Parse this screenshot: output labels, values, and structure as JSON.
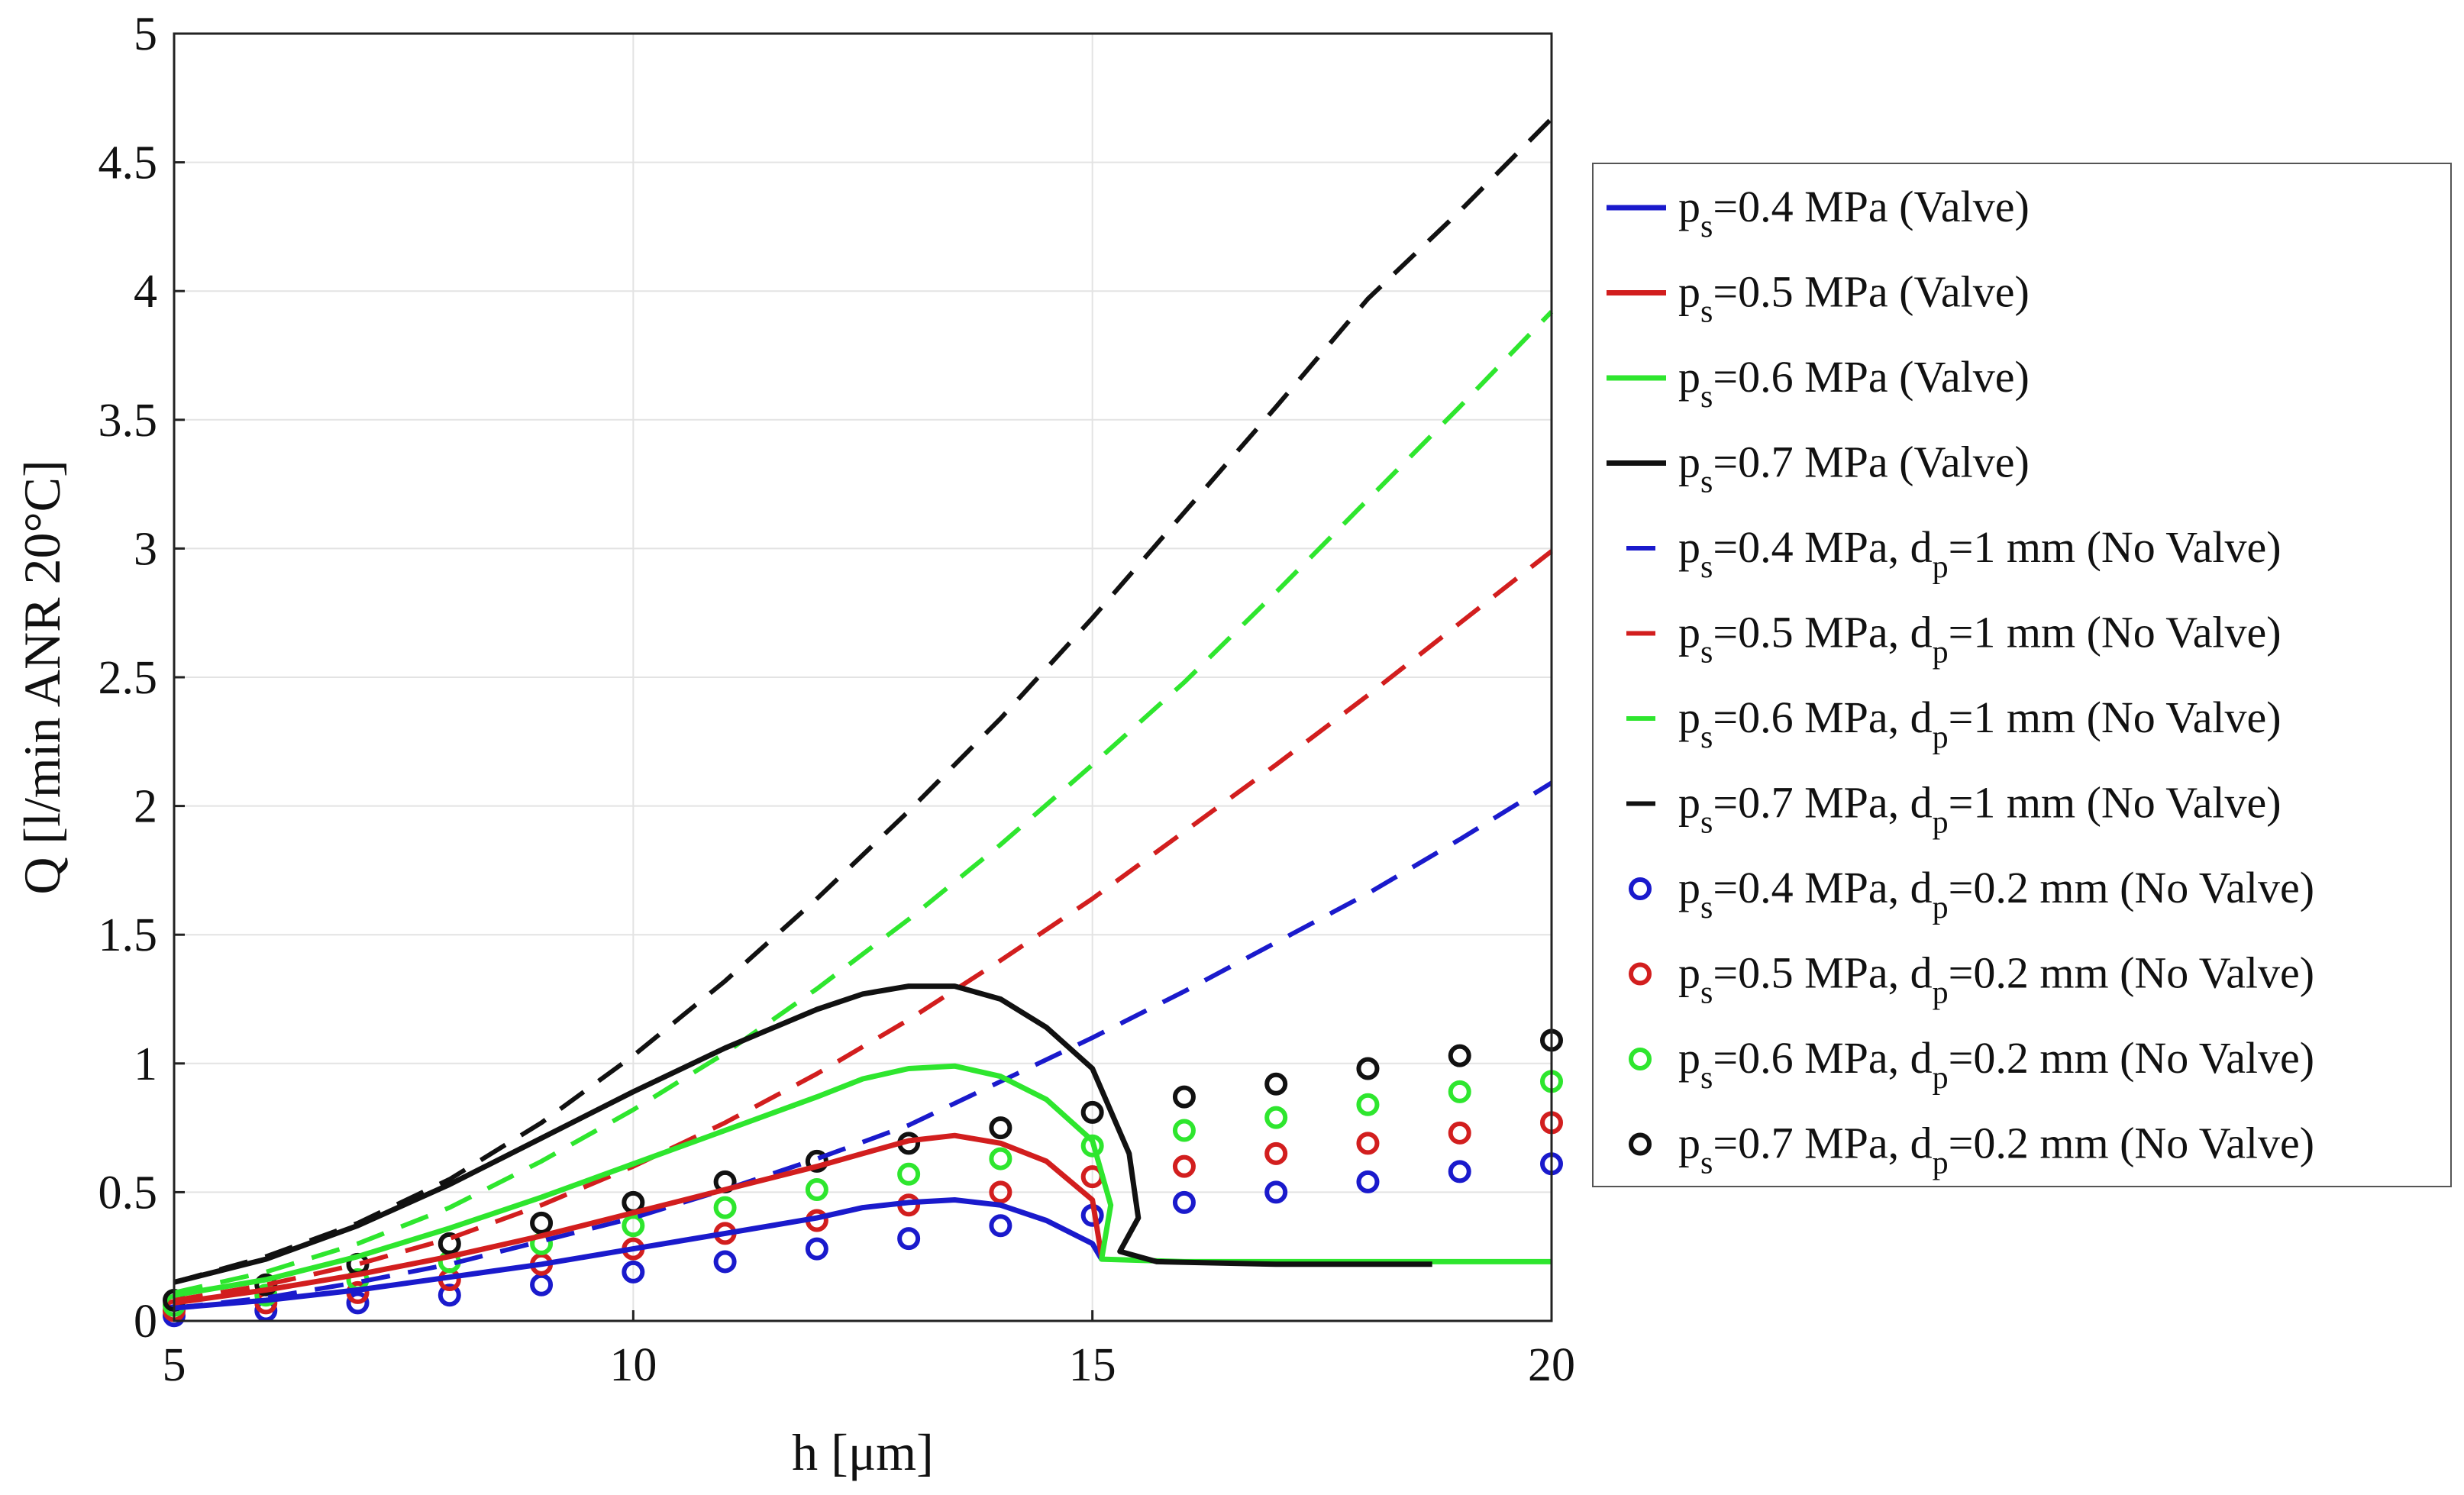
{
  "chart_data": {
    "type": "line",
    "title": "",
    "xlabel": "h [μm]",
    "ylabel": "Q [l/min ANR 20°C]",
    "xlim": [
      5,
      20
    ],
    "ylim": [
      0,
      5
    ],
    "grid": true,
    "legend_position": "right",
    "x_ticks": [
      "5",
      "10",
      "15",
      "20"
    ],
    "y_ticks": [
      "0",
      "0.5",
      "1",
      "1.5",
      "2",
      "2.5",
      "3",
      "3.5",
      "4",
      "4.5",
      "5"
    ],
    "colors": {
      "blue": "#1a1acc",
      "red": "#d21e1e",
      "green": "#2ee62e",
      "black": "#111111"
    },
    "series": [
      {
        "name": "ps=0.4 MPa (Valve)",
        "legend_parts": [
          [
            "p",
            ""
          ],
          [
            "s",
            "sub"
          ],
          [
            "=0.4 MPa (Valve)",
            ""
          ]
        ],
        "style": "solid",
        "color": "blue",
        "points": [
          [
            5,
            0.05
          ],
          [
            6,
            0.08
          ],
          [
            7,
            0.12
          ],
          [
            8,
            0.17
          ],
          [
            9,
            0.22
          ],
          [
            10,
            0.28
          ],
          [
            11,
            0.34
          ],
          [
            12,
            0.4
          ],
          [
            12.5,
            0.44
          ],
          [
            13,
            0.46
          ],
          [
            13.5,
            0.47
          ],
          [
            14,
            0.45
          ],
          [
            14.5,
            0.39
          ],
          [
            15,
            0.3
          ],
          [
            15.1,
            0.24
          ]
        ]
      },
      {
        "name": "ps=0.5 MPa (Valve)",
        "legend_parts": [
          [
            "p",
            ""
          ],
          [
            "s",
            "sub"
          ],
          [
            "=0.5 MPa (Valve)",
            ""
          ]
        ],
        "style": "solid",
        "color": "red",
        "points": [
          [
            5,
            0.07
          ],
          [
            6,
            0.12
          ],
          [
            7,
            0.18
          ],
          [
            8,
            0.25
          ],
          [
            9,
            0.33
          ],
          [
            10,
            0.42
          ],
          [
            11,
            0.51
          ],
          [
            12,
            0.6
          ],
          [
            12.5,
            0.65
          ],
          [
            13,
            0.7
          ],
          [
            13.5,
            0.72
          ],
          [
            14,
            0.69
          ],
          [
            14.5,
            0.62
          ],
          [
            15,
            0.47
          ],
          [
            15.1,
            0.25
          ]
        ]
      },
      {
        "name": "ps=0.6 MPa (Valve)",
        "legend_parts": [
          [
            "p",
            ""
          ],
          [
            "s",
            "sub"
          ],
          [
            "=0.6 MPa (Valve)",
            ""
          ]
        ],
        "style": "solid",
        "color": "green",
        "points": [
          [
            5,
            0.1
          ],
          [
            6,
            0.16
          ],
          [
            7,
            0.25
          ],
          [
            8,
            0.36
          ],
          [
            9,
            0.48
          ],
          [
            10,
            0.61
          ],
          [
            11,
            0.74
          ],
          [
            12,
            0.87
          ],
          [
            12.5,
            0.94
          ],
          [
            13,
            0.98
          ],
          [
            13.5,
            0.99
          ],
          [
            14,
            0.95
          ],
          [
            14.5,
            0.86
          ],
          [
            15,
            0.7
          ],
          [
            15.2,
            0.45
          ],
          [
            15.1,
            0.24
          ],
          [
            16,
            0.23
          ],
          [
            18,
            0.23
          ],
          [
            20,
            0.23
          ]
        ]
      },
      {
        "name": "ps=0.7 MPa (Valve)",
        "legend_parts": [
          [
            "p",
            ""
          ],
          [
            "s",
            "sub"
          ],
          [
            "=0.7 MPa (Valve)",
            ""
          ]
        ],
        "style": "solid",
        "color": "black",
        "points": [
          [
            5,
            0.15
          ],
          [
            6,
            0.24
          ],
          [
            7,
            0.37
          ],
          [
            8,
            0.53
          ],
          [
            9,
            0.71
          ],
          [
            10,
            0.89
          ],
          [
            11,
            1.06
          ],
          [
            12,
            1.21
          ],
          [
            12.5,
            1.27
          ],
          [
            13,
            1.3
          ],
          [
            13.5,
            1.3
          ],
          [
            14,
            1.25
          ],
          [
            14.5,
            1.14
          ],
          [
            15,
            0.98
          ],
          [
            15.4,
            0.65
          ],
          [
            15.5,
            0.4
          ],
          [
            15.3,
            0.27
          ],
          [
            15.7,
            0.23
          ],
          [
            17,
            0.22
          ],
          [
            18.7,
            0.22
          ]
        ]
      },
      {
        "name": "ps=0.4 MPa, dp=1 mm (No Valve)",
        "legend_parts": [
          [
            "p",
            ""
          ],
          [
            "s",
            "sub"
          ],
          [
            "=0.4 MPa, d",
            ""
          ],
          [
            "p",
            "sub"
          ],
          [
            "=1 mm (No Valve)",
            ""
          ]
        ],
        "style": "dashed",
        "color": "blue",
        "points": [
          [
            5,
            0.05
          ],
          [
            6,
            0.09
          ],
          [
            7,
            0.15
          ],
          [
            8,
            0.22
          ],
          [
            9,
            0.31
          ],
          [
            10,
            0.4
          ],
          [
            11,
            0.51
          ],
          [
            12,
            0.63
          ],
          [
            13,
            0.76
          ],
          [
            14,
            0.93
          ],
          [
            15,
            1.1
          ],
          [
            16,
            1.28
          ],
          [
            17,
            1.47
          ],
          [
            18,
            1.66
          ],
          [
            19,
            1.87
          ],
          [
            20,
            2.09
          ]
        ]
      },
      {
        "name": "ps=0.5 MPa, dp=1 mm (No Valve)",
        "legend_parts": [
          [
            "p",
            ""
          ],
          [
            "s",
            "sub"
          ],
          [
            "=0.5 MPa, d",
            ""
          ],
          [
            "p",
            "sub"
          ],
          [
            "=1 mm (No Valve)",
            ""
          ]
        ],
        "style": "dashed",
        "color": "red",
        "points": [
          [
            5,
            0.08
          ],
          [
            6,
            0.14
          ],
          [
            7,
            0.22
          ],
          [
            8,
            0.32
          ],
          [
            9,
            0.45
          ],
          [
            10,
            0.6
          ],
          [
            11,
            0.77
          ],
          [
            12,
            0.96
          ],
          [
            13,
            1.17
          ],
          [
            14,
            1.4
          ],
          [
            15,
            1.64
          ],
          [
            16,
            1.9
          ],
          [
            17,
            2.16
          ],
          [
            18,
            2.43
          ],
          [
            19,
            2.71
          ],
          [
            20,
            2.99
          ]
        ]
      },
      {
        "name": "ps=0.6 MPa, dp=1 mm (No Valve)",
        "legend_parts": [
          [
            "p",
            ""
          ],
          [
            "s",
            "sub"
          ],
          [
            "=0.6 MPa, d",
            ""
          ],
          [
            "p",
            "sub"
          ],
          [
            "=1 mm (No Valve)",
            ""
          ]
        ],
        "style": "dashed",
        "color": "green",
        "points": [
          [
            5,
            0.11
          ],
          [
            6,
            0.19
          ],
          [
            7,
            0.3
          ],
          [
            8,
            0.44
          ],
          [
            9,
            0.62
          ],
          [
            10,
            0.82
          ],
          [
            11,
            1.04
          ],
          [
            12,
            1.29
          ],
          [
            13,
            1.56
          ],
          [
            14,
            1.85
          ],
          [
            15,
            2.16
          ],
          [
            16,
            2.48
          ],
          [
            17,
            2.83
          ],
          [
            18,
            3.19
          ],
          [
            19,
            3.55
          ],
          [
            20,
            3.92
          ]
        ]
      },
      {
        "name": "ps=0.7 MPa, dp=1 mm (No Valve)",
        "legend_parts": [
          [
            "p",
            ""
          ],
          [
            "s",
            "sub"
          ],
          [
            "=0.7 MPa, d",
            ""
          ],
          [
            "p",
            "sub"
          ],
          [
            "=1 mm (No Valve)",
            ""
          ]
        ],
        "style": "dashed",
        "color": "black",
        "points": [
          [
            5,
            0.15
          ],
          [
            6,
            0.25
          ],
          [
            7,
            0.38
          ],
          [
            8,
            0.55
          ],
          [
            9,
            0.77
          ],
          [
            10,
            1.03
          ],
          [
            11,
            1.32
          ],
          [
            12,
            1.64
          ],
          [
            13,
            1.98
          ],
          [
            14,
            2.34
          ],
          [
            15,
            2.73
          ],
          [
            16,
            3.14
          ],
          [
            17,
            3.55
          ],
          [
            18,
            3.97
          ],
          [
            19,
            4.31
          ],
          [
            20,
            4.67
          ]
        ]
      },
      {
        "name": "ps=0.4 MPa, dp=0.2 mm (No Valve)",
        "legend_parts": [
          [
            "p",
            ""
          ],
          [
            "s",
            "sub"
          ],
          [
            "=0.4 MPa, d",
            ""
          ],
          [
            "p",
            "sub"
          ],
          [
            "=0.2 mm (No Valve)",
            ""
          ]
        ],
        "style": "markers",
        "color": "blue",
        "points": [
          [
            5,
            0.02
          ],
          [
            6,
            0.04
          ],
          [
            7,
            0.07
          ],
          [
            8,
            0.1
          ],
          [
            9,
            0.14
          ],
          [
            10,
            0.19
          ],
          [
            11,
            0.23
          ],
          [
            12,
            0.28
          ],
          [
            13,
            0.32
          ],
          [
            14,
            0.37
          ],
          [
            15,
            0.41
          ],
          [
            16,
            0.46
          ],
          [
            17,
            0.5
          ],
          [
            18,
            0.54
          ],
          [
            19,
            0.58
          ],
          [
            20,
            0.61
          ]
        ]
      },
      {
        "name": "ps=0.5 MPa, dp=0.2 mm (No Valve)",
        "legend_parts": [
          [
            "p",
            ""
          ],
          [
            "s",
            "sub"
          ],
          [
            "=0.5 MPa, d",
            ""
          ],
          [
            "p",
            "sub"
          ],
          [
            "=0.2 mm (No Valve)",
            ""
          ]
        ],
        "style": "markers",
        "color": "red",
        "points": [
          [
            5,
            0.04
          ],
          [
            6,
            0.07
          ],
          [
            7,
            0.11
          ],
          [
            8,
            0.16
          ],
          [
            9,
            0.22
          ],
          [
            10,
            0.28
          ],
          [
            11,
            0.34
          ],
          [
            12,
            0.39
          ],
          [
            13,
            0.45
          ],
          [
            14,
            0.5
          ],
          [
            15,
            0.56
          ],
          [
            16,
            0.6
          ],
          [
            17,
            0.65
          ],
          [
            18,
            0.69
          ],
          [
            19,
            0.73
          ],
          [
            20,
            0.77
          ]
        ]
      },
      {
        "name": "ps=0.6 MPa, dp=0.2 mm (No Valve)",
        "legend_parts": [
          [
            "p",
            ""
          ],
          [
            "s",
            "sub"
          ],
          [
            "=0.6 MPa, d",
            ""
          ],
          [
            "p",
            "sub"
          ],
          [
            "=0.2 mm (No Valve)",
            ""
          ]
        ],
        "style": "markers",
        "color": "green",
        "points": [
          [
            5,
            0.06
          ],
          [
            6,
            0.1
          ],
          [
            7,
            0.16
          ],
          [
            8,
            0.23
          ],
          [
            9,
            0.3
          ],
          [
            10,
            0.37
          ],
          [
            11,
            0.44
          ],
          [
            12,
            0.51
          ],
          [
            13,
            0.57
          ],
          [
            14,
            0.63
          ],
          [
            15,
            0.68
          ],
          [
            16,
            0.74
          ],
          [
            17,
            0.79
          ],
          [
            18,
            0.84
          ],
          [
            19,
            0.89
          ],
          [
            20,
            0.93
          ]
        ]
      },
      {
        "name": "ps=0.7 MPa, dp=0.2 mm (No Valve)",
        "legend_parts": [
          [
            "p",
            ""
          ],
          [
            "s",
            "sub"
          ],
          [
            "=0.7 MPa, d",
            ""
          ],
          [
            "p",
            "sub"
          ],
          [
            "=0.2 mm (No Valve)",
            ""
          ]
        ],
        "style": "markers",
        "color": "black",
        "points": [
          [
            5,
            0.08
          ],
          [
            6,
            0.14
          ],
          [
            7,
            0.22
          ],
          [
            8,
            0.3
          ],
          [
            9,
            0.38
          ],
          [
            10,
            0.46
          ],
          [
            11,
            0.54
          ],
          [
            12,
            0.62
          ],
          [
            13,
            0.69
          ],
          [
            14,
            0.75
          ],
          [
            15,
            0.81
          ],
          [
            16,
            0.87
          ],
          [
            17,
            0.92
          ],
          [
            18,
            0.98
          ],
          [
            19,
            1.03
          ],
          [
            20,
            1.09
          ]
        ]
      }
    ]
  }
}
